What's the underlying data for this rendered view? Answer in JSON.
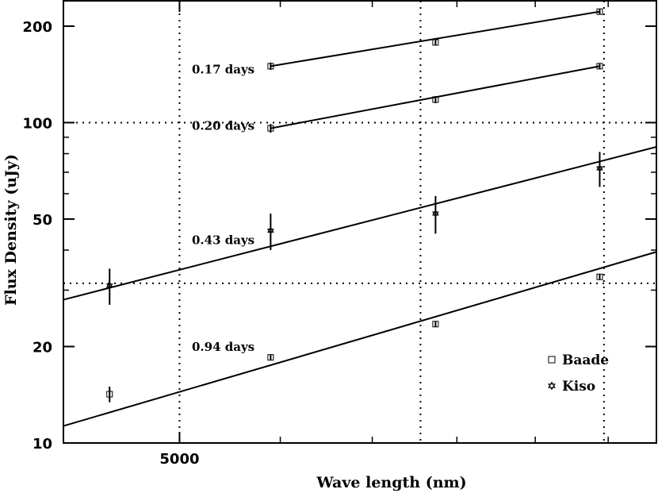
{
  "chart_data": {
    "type": "scatter",
    "title": "",
    "xlabel": "Wave length (nm)",
    "ylabel": "Flux Density (uJy)",
    "xscale": "log",
    "yscale": "log",
    "xlim": [
      4480,
      7850
    ],
    "ylim": [
      10,
      240
    ],
    "x_ticks": [
      {
        "value": 5000,
        "label": "5000"
      }
    ],
    "x_minor_ticks": [
      5500,
      6000,
      6500,
      7000,
      7500
    ],
    "y_ticks": [
      {
        "value": 10,
        "label": "10"
      },
      {
        "value": 20,
        "label": "20"
      },
      {
        "value": 50,
        "label": "50"
      },
      {
        "value": 100,
        "label": "100"
      },
      {
        "value": 200,
        "label": "200"
      }
    ],
    "grid": {
      "vertical_dotted_x": [
        5000,
        6280,
        7470
      ],
      "horizontal_dotted_y": [
        100,
        31.5
      ]
    },
    "legend": {
      "placement": "bottom-right",
      "entries": [
        {
          "label": "Baade",
          "marker": "square"
        },
        {
          "label": "Kiso",
          "marker": "star"
        }
      ]
    },
    "series": [
      {
        "epoch_label": "0.17 days",
        "fit_range": [
          5450,
          7440
        ],
        "fit_endpoints": [
          150,
          222
        ],
        "points": [
          {
            "x": 5450,
            "y": 150,
            "yerr": 4,
            "marker": "square"
          },
          {
            "x": 6370,
            "y": 178,
            "yerr": 4,
            "marker": "square"
          },
          {
            "x": 7440,
            "y": 222,
            "yerr": 4,
            "marker": "square"
          }
        ]
      },
      {
        "epoch_label": "0.20 days",
        "fit_range": [
          5450,
          7440
        ],
        "fit_endpoints": [
          96,
          150
        ],
        "points": [
          {
            "x": 5450,
            "y": 96,
            "yerr": 3,
            "marker": "square"
          },
          {
            "x": 6370,
            "y": 118,
            "yerr": 3,
            "marker": "square"
          },
          {
            "x": 7440,
            "y": 150,
            "yerr": 3,
            "marker": "square"
          }
        ]
      },
      {
        "epoch_label": "0.43 days",
        "fit_range": [
          4480,
          7850
        ],
        "fit_endpoints": [
          28,
          84
        ],
        "points": [
          {
            "x": 4680,
            "y": 31,
            "yerr": 4,
            "marker": "star"
          },
          {
            "x": 5450,
            "y": 46,
            "yerr": 6,
            "marker": "star"
          },
          {
            "x": 6370,
            "y": 52,
            "yerr": 7,
            "marker": "star"
          },
          {
            "x": 7440,
            "y": 72,
            "yerr": 9,
            "marker": "star"
          }
        ]
      },
      {
        "epoch_label": "0.94 days",
        "fit_range": [
          4480,
          7850
        ],
        "fit_endpoints": [
          11.3,
          39.5
        ],
        "points": [
          {
            "x": 4680,
            "y": 14.2,
            "yerr": 0.8,
            "marker": "square"
          },
          {
            "x": 5450,
            "y": 18.5,
            "yerr": 0.4,
            "marker": "square"
          },
          {
            "x": 6370,
            "y": 23.5,
            "yerr": 0.5,
            "marker": "square"
          },
          {
            "x": 7440,
            "y": 33,
            "yerr": 0.7,
            "marker": "square"
          }
        ]
      }
    ]
  }
}
